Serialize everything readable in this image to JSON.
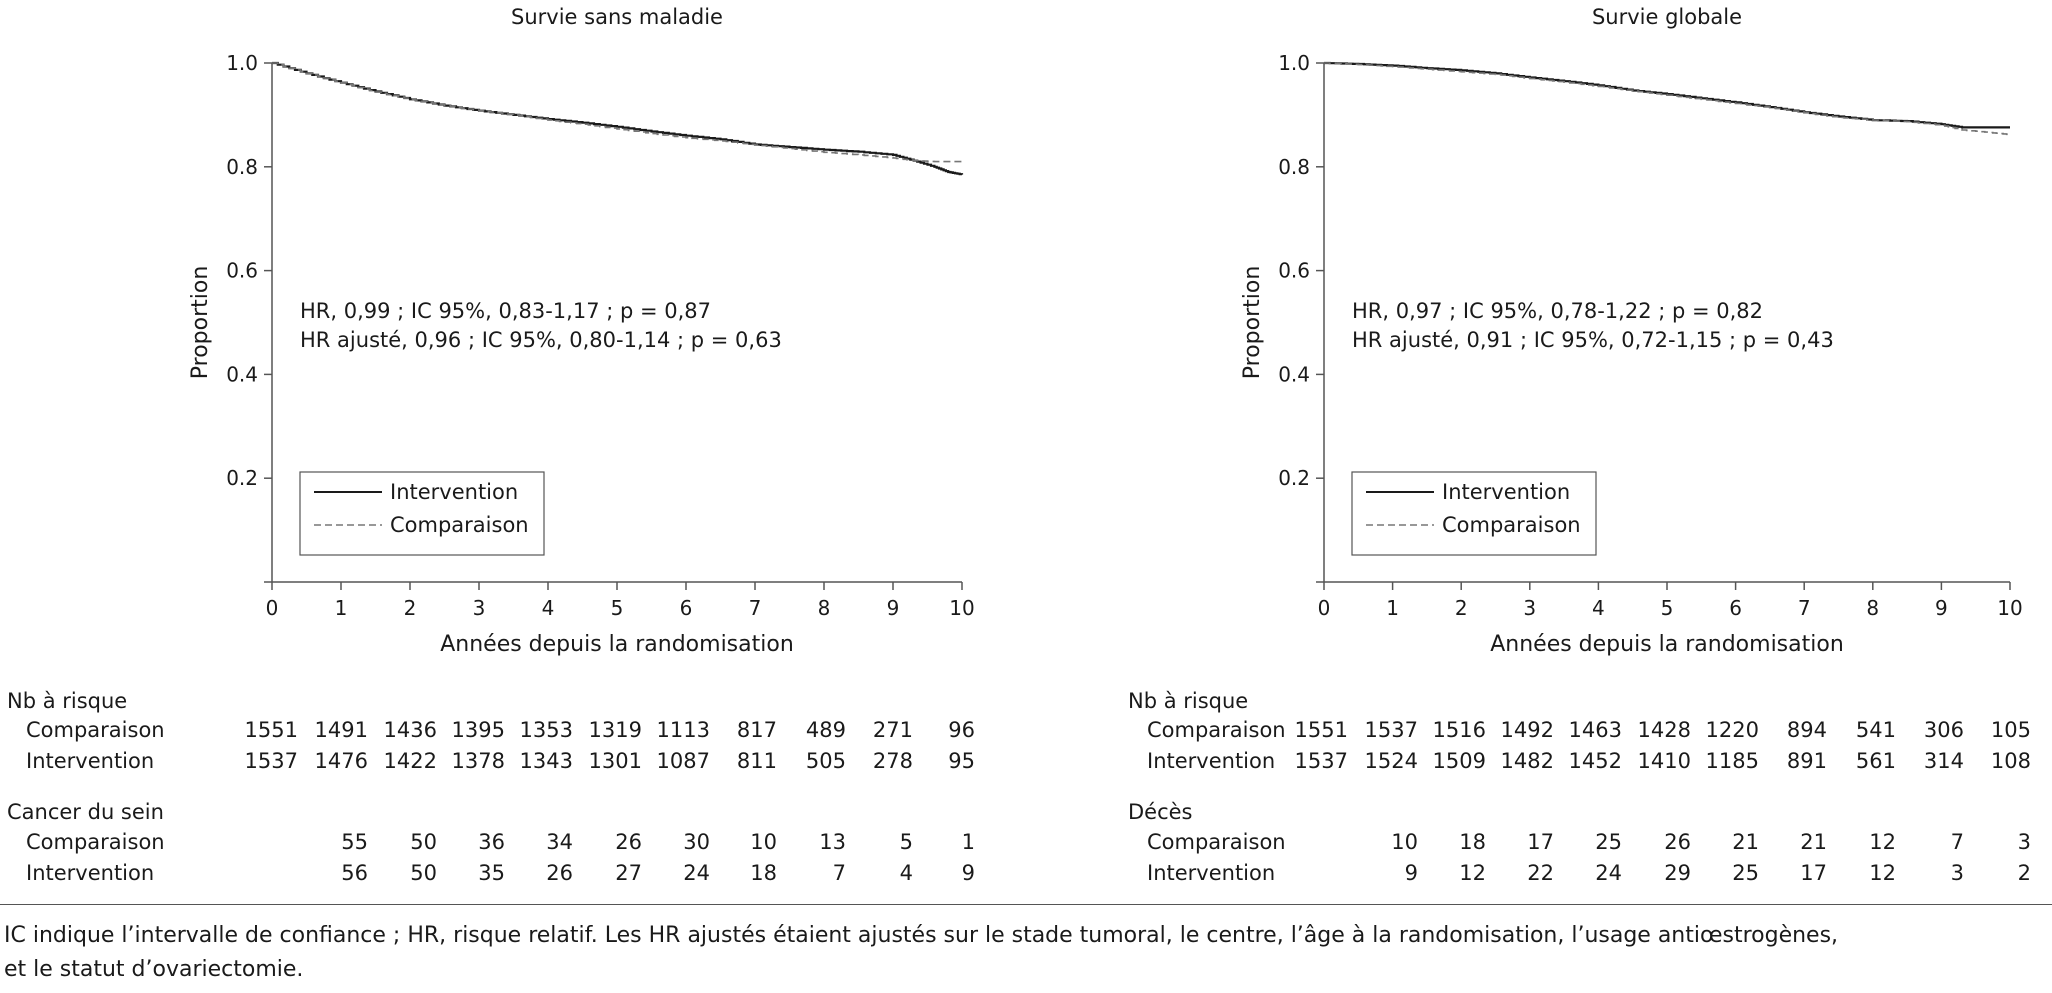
{
  "chart_data": [
    {
      "type": "line",
      "title": "Survie sans maladie",
      "xlabel": "Années depuis la randomisation",
      "ylabel": "Proportion",
      "xlim": [
        0,
        10
      ],
      "ylim": [
        0,
        1.0
      ],
      "xticks": [
        "0",
        "1",
        "2",
        "3",
        "4",
        "5",
        "6",
        "7",
        "8",
        "9",
        "10"
      ],
      "yticks": [
        "0.2",
        "0.4",
        "0.6",
        "0.8",
        "1.0"
      ],
      "grid": false,
      "legend_position": "bottom-left",
      "annotations": [
        "HR, 0,99 ; IC 95%, 0,83-1,17 ; p = 0,87",
        "HR ajusté, 0,96 ; IC 95%, 0,80-1,14 ; p = 0,63"
      ],
      "series": [
        {
          "name": "Intervention",
          "style": "solid",
          "color": "#1a1a1a",
          "x": [
            0,
            0.5,
            1,
            1.5,
            2,
            2.5,
            3,
            3.5,
            4,
            4.5,
            5,
            5.5,
            6,
            6.5,
            7,
            7.5,
            8,
            8.5,
            9,
            9.3,
            9.6,
            9.8,
            10
          ],
          "y": [
            1.0,
            0.98,
            0.962,
            0.945,
            0.93,
            0.918,
            0.908,
            0.9,
            0.892,
            0.885,
            0.877,
            0.868,
            0.86,
            0.853,
            0.843,
            0.838,
            0.833,
            0.829,
            0.823,
            0.812,
            0.8,
            0.79,
            0.785
          ]
        },
        {
          "name": "Comparaison",
          "style": "dashed",
          "color": "#777777",
          "x": [
            0,
            0.5,
            1,
            1.5,
            2,
            2.5,
            3,
            3.5,
            4,
            4.5,
            5,
            5.5,
            6,
            6.5,
            7,
            7.5,
            8,
            8.5,
            9,
            9.3,
            9.6,
            10
          ],
          "y": [
            1.0,
            0.98,
            0.962,
            0.944,
            0.93,
            0.918,
            0.908,
            0.9,
            0.89,
            0.882,
            0.873,
            0.864,
            0.856,
            0.85,
            0.842,
            0.835,
            0.828,
            0.823,
            0.817,
            0.812,
            0.81,
            0.81
          ]
        }
      ],
      "risk_table": {
        "header": "Nb à risque",
        "rows": [
          {
            "label": "Comparaison",
            "values": [
              "1551",
              "1491",
              "1436",
              "1395",
              "1353",
              "1319",
              "1113",
              "817",
              "489",
              "271",
              "96"
            ]
          },
          {
            "label": "Intervention",
            "values": [
              "1537",
              "1476",
              "1422",
              "1378",
              "1343",
              "1301",
              "1087",
              "811",
              "505",
              "278",
              "95"
            ]
          }
        ]
      },
      "event_table": {
        "header": "Cancer du sein",
        "rows": [
          {
            "label": "Comparaison",
            "values": [
              "55",
              "50",
              "36",
              "34",
              "26",
              "30",
              "10",
              "13",
              "5",
              "1"
            ]
          },
          {
            "label": "Intervention",
            "values": [
              "56",
              "50",
              "35",
              "26",
              "27",
              "24",
              "18",
              "7",
              "4",
              "9"
            ]
          }
        ]
      }
    },
    {
      "type": "line",
      "title": "Survie globale",
      "xlabel": "Années depuis la randomisation",
      "ylabel": "Proportion",
      "xlim": [
        0,
        10
      ],
      "ylim": [
        0,
        1.0
      ],
      "xticks": [
        "0",
        "1",
        "2",
        "3",
        "4",
        "5",
        "6",
        "7",
        "8",
        "9",
        "10"
      ],
      "yticks": [
        "0.2",
        "0.4",
        "0.6",
        "0.8",
        "1.0"
      ],
      "grid": false,
      "legend_position": "bottom-left",
      "annotations": [
        "HR, 0,97 ; IC 95%, 0,78-1,22 ; p = 0,82",
        "HR ajusté, 0,91 ; IC 95%, 0,72-1,15 ; p = 0,43"
      ],
      "series": [
        {
          "name": "Intervention",
          "style": "solid",
          "color": "#1a1a1a",
          "x": [
            0,
            0.5,
            1,
            1.5,
            2,
            2.5,
            3,
            3.5,
            4,
            4.5,
            5,
            5.5,
            6,
            6.5,
            7,
            7.5,
            8,
            8.5,
            9,
            9.3,
            10
          ],
          "y": [
            1.0,
            0.998,
            0.995,
            0.99,
            0.986,
            0.98,
            0.972,
            0.965,
            0.957,
            0.947,
            0.94,
            0.932,
            0.924,
            0.915,
            0.905,
            0.897,
            0.89,
            0.888,
            0.882,
            0.876,
            0.876
          ]
        },
        {
          "name": "Comparaison",
          "style": "dashed",
          "color": "#777777",
          "x": [
            0,
            0.5,
            1,
            1.5,
            2,
            2.5,
            3,
            3.5,
            4,
            4.5,
            5,
            5.5,
            6,
            6.5,
            7,
            7.5,
            8,
            8.5,
            9,
            9.3,
            9.7,
            10
          ],
          "y": [
            1.0,
            0.997,
            0.993,
            0.988,
            0.983,
            0.978,
            0.97,
            0.963,
            0.955,
            0.946,
            0.938,
            0.93,
            0.922,
            0.914,
            0.904,
            0.895,
            0.89,
            0.887,
            0.88,
            0.871,
            0.866,
            0.862
          ]
        }
      ],
      "risk_table": {
        "header": "Nb à risque",
        "rows": [
          {
            "label": "Comparaison",
            "values": [
              "1551",
              "1537",
              "1516",
              "1492",
              "1463",
              "1428",
              "1220",
              "894",
              "541",
              "306",
              "105"
            ]
          },
          {
            "label": "Intervention",
            "values": [
              "1537",
              "1524",
              "1509",
              "1482",
              "1452",
              "1410",
              "1185",
              "891",
              "561",
              "314",
              "108"
            ]
          }
        ]
      },
      "event_table": {
        "header": "Décès",
        "rows": [
          {
            "label": "Comparaison",
            "values": [
              "10",
              "18",
              "17",
              "25",
              "26",
              "21",
              "21",
              "12",
              "7",
              "3"
            ]
          },
          {
            "label": "Intervention",
            "values": [
              "9",
              "12",
              "22",
              "24",
              "29",
              "25",
              "17",
              "12",
              "3",
              "2"
            ]
          }
        ]
      }
    }
  ],
  "footnote": {
    "line1": "IC indique l’intervalle de confiance ; HR, risque relatif. Les HR ajustés étaient ajustés sur le stade tumoral, le centre, l’âge à la randomisation, l’usage antiœstrogènes,",
    "line2": "et le statut d’ovariectomie."
  }
}
